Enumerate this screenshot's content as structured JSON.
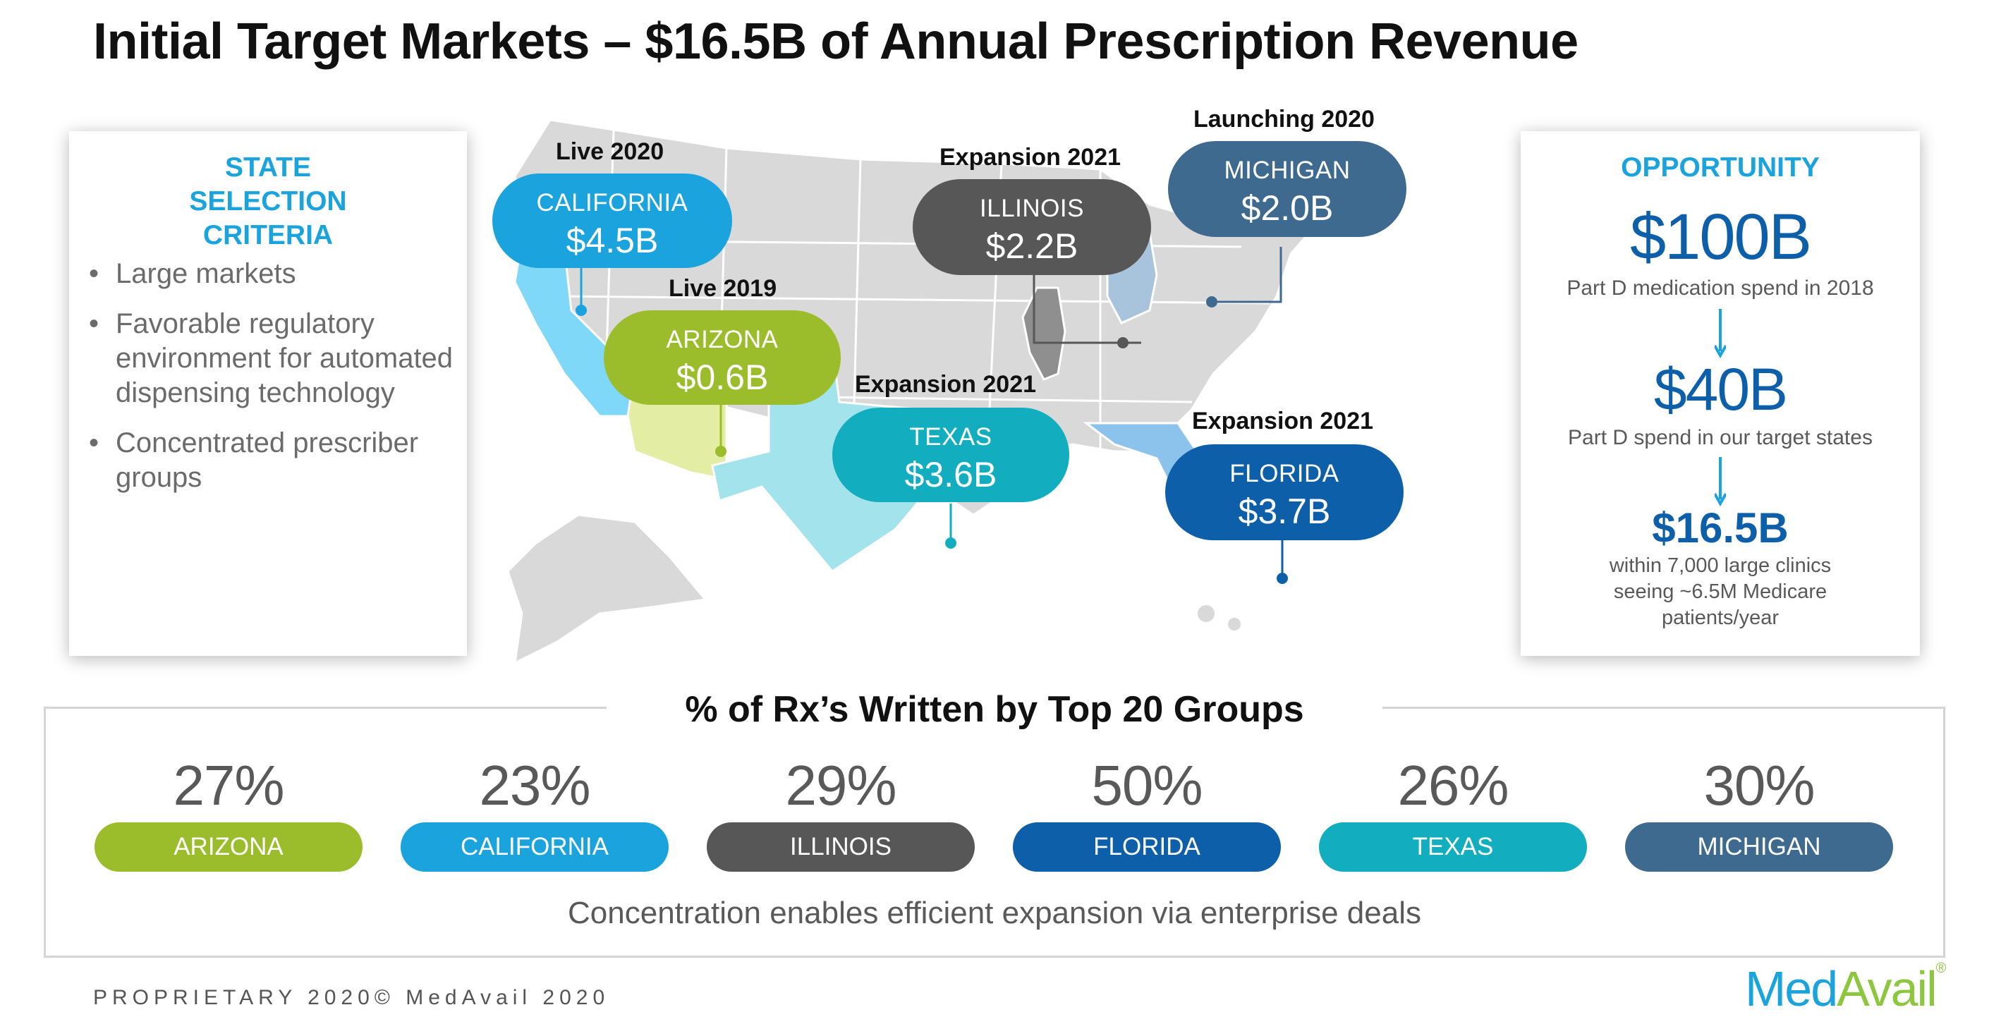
{
  "title": "Initial Target Markets – $16.5B of Annual Prescription Revenue",
  "criteria": {
    "title": "STATE SELECTION CRITERIA",
    "items": [
      "Large markets",
      "Favorable regulatory environment for automated dispensing technology",
      "Concentrated prescriber groups"
    ]
  },
  "opportunity": {
    "title": "OPPORTUNITY",
    "tiers": [
      {
        "value": "$100B",
        "caption": "Part D medication spend in 2018"
      },
      {
        "value": "$40B",
        "caption": "Part D spend in our target states"
      },
      {
        "value": "$16.5B",
        "caption": "within 7,000 large clinics seeing ~6.5M  Medicare patients/year"
      }
    ]
  },
  "map": {
    "markets": [
      {
        "tag": "Live 2020",
        "state": "CALIFORNIA",
        "amount": "$4.5B",
        "color": "#1aa3dc"
      },
      {
        "tag": "Live 2019",
        "state": "ARIZONA",
        "amount": "$0.6B",
        "color": "#9bbd2c"
      },
      {
        "tag": "Expansion 2021",
        "state": "TEXAS",
        "amount": "$3.6B",
        "color": "#12aebf"
      },
      {
        "tag": "Expansion 2021",
        "state": "ILLINOIS",
        "amount": "$2.2B",
        "color": "#575757"
      },
      {
        "tag": "Launching 2020",
        "state": "MICHIGAN",
        "amount": "$2.0B",
        "color": "#3e6a8f"
      },
      {
        "tag": "Expansion 2021",
        "state": "FLORIDA",
        "amount": "$3.7B",
        "color": "#0d5fa9"
      }
    ],
    "state_fill": {
      "california": "#7fd8f8",
      "arizona": "#e3eda3",
      "texas": "#a3e3ec",
      "illinois": "#8f8f8f",
      "michigan": "#a8c4dc",
      "florida": "#8cc3ec",
      "other": "#d9d9d9"
    }
  },
  "rx": {
    "title": "% of Rx’s Written by Top 20 Groups",
    "items": [
      {
        "pct": "27%",
        "state": "ARIZONA",
        "color": "#9bbd2c"
      },
      {
        "pct": "23%",
        "state": "CALIFORNIA",
        "color": "#1aa3dc"
      },
      {
        "pct": "29%",
        "state": "ILLINOIS",
        "color": "#575757"
      },
      {
        "pct": "50%",
        "state": "FLORIDA",
        "color": "#0d5fa9"
      },
      {
        "pct": "26%",
        "state": "TEXAS",
        "color": "#12aebf"
      },
      {
        "pct": "30%",
        "state": "MICHIGAN",
        "color": "#3e6a8f"
      }
    ],
    "footnote": "Concentration enables efficient expansion via enterprise deals"
  },
  "footer": "PROPRIETARY 2020© MedAvail 2020",
  "logo": {
    "part1": "Med",
    "part2": "Avail",
    "mark": "®"
  }
}
